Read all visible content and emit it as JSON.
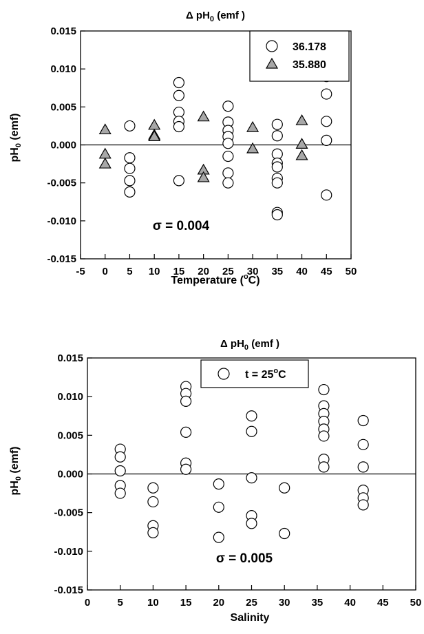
{
  "chart_data": [
    {
      "type": "scatter",
      "title": "Δ pH0 (emf )",
      "title_parts": {
        "delta": "Δ pH",
        "sub": "0",
        "rest": " (emf )"
      },
      "xlabel": "Temperature (°C)",
      "xlabel_parts": {
        "pre": "Temperature (",
        "sup": "o",
        "post": "C)"
      },
      "ylabel": "pH0 (emf)",
      "ylabel_parts": {
        "pre": "pH",
        "sub": "0",
        "post": " (emf)"
      },
      "xlim": [
        -5,
        50
      ],
      "ylim": [
        -0.015,
        0.015
      ],
      "xticks": [
        "-5",
        "0",
        "5",
        "10",
        "15",
        "20",
        "25",
        "30",
        "35",
        "40",
        "45",
        "50"
      ],
      "yticks": [
        "-0.015",
        "-0.010",
        "-0.005",
        "0.000",
        "0.005",
        "0.010",
        "0.015"
      ],
      "zero_line": true,
      "grid": false,
      "legend_position": "top-right",
      "annotation": "σ = 0.004",
      "series": [
        {
          "name": "36.178",
          "marker": "circle",
          "color": "#ffffff",
          "points": [
            [
              5,
              0.0025
            ],
            [
              5,
              -0.0017
            ],
            [
              5,
              -0.0031
            ],
            [
              5,
              -0.0047
            ],
            [
              5,
              -0.0062
            ],
            [
              15,
              0.0082
            ],
            [
              15,
              0.0065
            ],
            [
              15,
              0.0043
            ],
            [
              15,
              0.0031
            ],
            [
              15,
              0.0024
            ],
            [
              15,
              -0.0047
            ],
            [
              25,
              0.0051
            ],
            [
              25,
              0.003
            ],
            [
              25,
              0.0019
            ],
            [
              25,
              0.0011
            ],
            [
              25,
              0.0002
            ],
            [
              25,
              -0.0015
            ],
            [
              25,
              -0.0037
            ],
            [
              25,
              -0.005
            ],
            [
              35,
              0.0027
            ],
            [
              35,
              0.0012
            ],
            [
              35,
              -0.0012
            ],
            [
              35,
              -0.0024
            ],
            [
              35,
              -0.0029
            ],
            [
              35,
              -0.0044
            ],
            [
              35,
              -0.005
            ],
            [
              35,
              -0.0089
            ],
            [
              35,
              -0.0092
            ],
            [
              45,
              0.009
            ],
            [
              45,
              0.0067
            ],
            [
              45,
              0.0031
            ],
            [
              45,
              0.0006
            ],
            [
              45,
              -0.0066
            ]
          ]
        },
        {
          "name": "35.880",
          "marker": "triangle",
          "color": "#a8a8a8",
          "points": [
            [
              0,
              0.002
            ],
            [
              0,
              -0.0012
            ],
            [
              0,
              -0.0025
            ],
            [
              10,
              0.0026
            ],
            [
              10,
              0.0013
            ],
            [
              10,
              0.0011
            ],
            [
              20,
              0.0037
            ],
            [
              20,
              -0.0033
            ],
            [
              20,
              -0.0043
            ],
            [
              30,
              0.0023
            ],
            [
              30,
              -0.0005
            ],
            [
              40,
              0.0032
            ],
            [
              40,
              0.0001
            ],
            [
              40,
              -0.0014
            ]
          ]
        }
      ]
    },
    {
      "type": "scatter",
      "title": "Δ pH0 (emf )",
      "title_parts": {
        "delta": "Δ pH",
        "sub": "0",
        "rest": " (emf )"
      },
      "xlabel": "Salinity",
      "ylabel": "pH0 (emf)",
      "ylabel_parts": {
        "pre": "pH",
        "sub": "0",
        "post": " (emf)"
      },
      "xlim": [
        0,
        50
      ],
      "ylim": [
        -0.015,
        0.015
      ],
      "xticks": [
        "0",
        "5",
        "10",
        "15",
        "20",
        "25",
        "30",
        "35",
        "40",
        "45",
        "50"
      ],
      "yticks": [
        "-0.015",
        "-0.010",
        "-0.005",
        "0.000",
        "0.005",
        "0.010",
        "0.015"
      ],
      "zero_line": true,
      "grid": false,
      "legend_position": "top-center",
      "annotation": "σ = 0.005",
      "series": [
        {
          "name": "t = 25°C",
          "name_parts": {
            "pre": "t = 25",
            "sup": "o",
            "post": "C"
          },
          "marker": "circle",
          "color": "#ffffff",
          "points": [
            [
              5,
              0.0032
            ],
            [
              5,
              0.0022
            ],
            [
              5,
              0.0004
            ],
            [
              5,
              -0.0015
            ],
            [
              5,
              -0.0025
            ],
            [
              10,
              -0.0018
            ],
            [
              10,
              -0.0036
            ],
            [
              10,
              -0.0067
            ],
            [
              10,
              -0.0076
            ],
            [
              15,
              0.0113
            ],
            [
              15,
              0.0104
            ],
            [
              15,
              0.0094
            ],
            [
              15,
              0.0054
            ],
            [
              15,
              0.0014
            ],
            [
              15,
              0.0006
            ],
            [
              20,
              -0.0013
            ],
            [
              20,
              -0.0043
            ],
            [
              20,
              -0.0082
            ],
            [
              25,
              0.0075
            ],
            [
              25,
              0.0055
            ],
            [
              25,
              -0.0005
            ],
            [
              25,
              -0.0054
            ],
            [
              25,
              -0.0064
            ],
            [
              30,
              -0.0018
            ],
            [
              30,
              -0.0077
            ],
            [
              36,
              0.0109
            ],
            [
              36,
              0.0088
            ],
            [
              36,
              0.0078
            ],
            [
              36,
              0.0068
            ],
            [
              36,
              0.0058
            ],
            [
              36,
              0.0049
            ],
            [
              36,
              0.0019
            ],
            [
              36,
              0.0009
            ],
            [
              42,
              0.0069
            ],
            [
              42,
              0.0038
            ],
            [
              42,
              0.0009
            ],
            [
              42,
              -0.0021
            ],
            [
              42,
              -0.0031
            ],
            [
              42,
              -0.004
            ]
          ]
        }
      ]
    }
  ]
}
